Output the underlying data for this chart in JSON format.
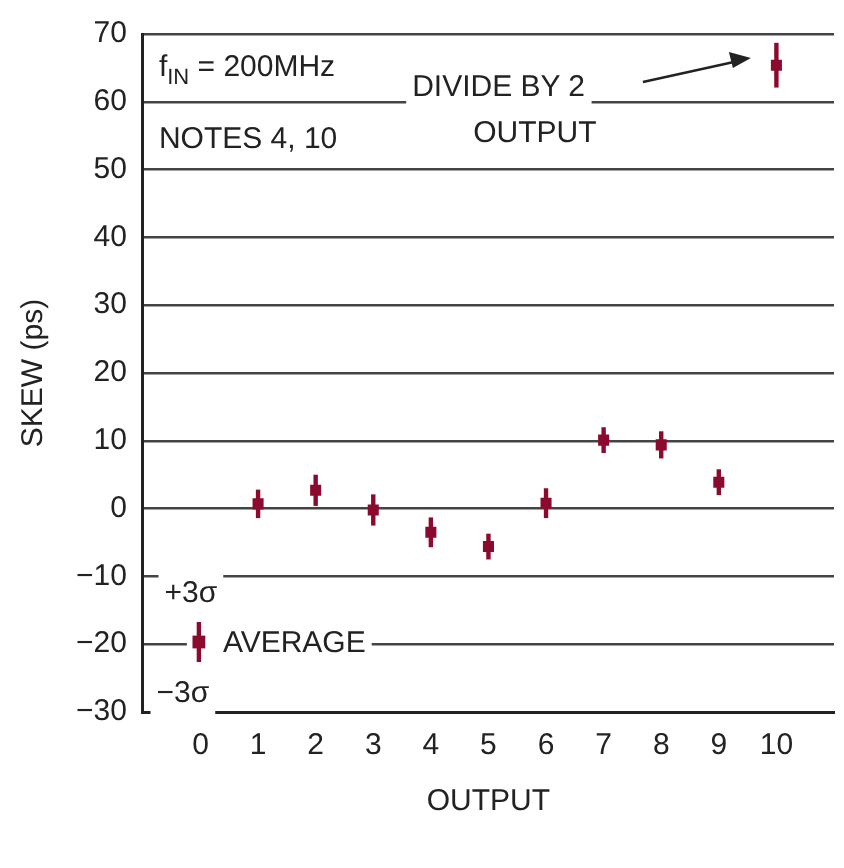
{
  "chart_data": {
    "type": "scatter",
    "xlabel": "OUTPUT",
    "ylabel": "SKEW (ps)",
    "x": [
      1,
      2,
      3,
      4,
      5,
      6,
      7,
      8,
      9,
      10
    ],
    "series": [
      {
        "name": "AVERAGE",
        "color": "#8b0a2e",
        "values": [
          0.7,
          2.7,
          -0.2,
          -3.5,
          -5.6,
          0.8,
          10.1,
          9.4,
          3.9,
          65.4
        ],
        "errors": [
          2.1,
          2.3,
          2.3,
          2.2,
          1.9,
          2.2,
          1.9,
          2,
          1.9,
          3.3
        ]
      }
    ],
    "xlim": [
      -1,
      11
    ],
    "xticks": [
      0,
      1,
      2,
      3,
      4,
      5,
      6,
      7,
      8,
      9,
      10
    ],
    "ylim": [
      -30,
      70
    ],
    "yticks": [
      -30,
      -20,
      -10,
      0,
      10,
      20,
      30,
      40,
      50,
      60,
      70
    ],
    "grid": "y",
    "legend": "bottom left",
    "marker": "square",
    "annotations": [
      "f$_{IN}$ = 200MHz",
      "NOTES 4, 10",
      "DIVIDE BY 2\nOUTPUT",
      "+3σ",
      "−3σ"
    ]
  }
}
